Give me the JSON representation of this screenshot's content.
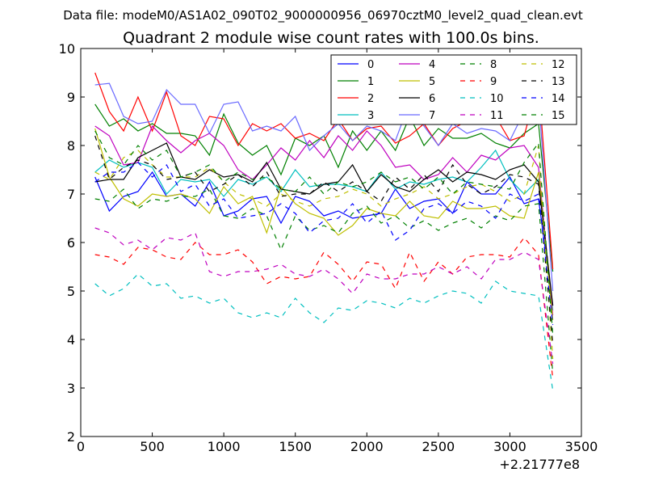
{
  "suptitle": "Data file: modeM0/AS1A02_090T02_9000000956_06970cztM0_level2_quad_clean.evt",
  "chart_data": {
    "type": "line",
    "title": "Quadrant 2 module wise count rates with 100.0s bins.",
    "xlabel": "",
    "ylabel": "",
    "x_offset_label": "+2.21777e8",
    "xlim": [
      0,
      3500
    ],
    "ylim": [
      2,
      10
    ],
    "x_ticks": [
      0,
      500,
      1000,
      1500,
      2000,
      2500,
      3000,
      3500
    ],
    "y_ticks": [
      2,
      3,
      4,
      5,
      6,
      7,
      8,
      9,
      10
    ],
    "grid": false,
    "legend_position": "top-right",
    "x": [
      100,
      200,
      300,
      400,
      500,
      600,
      700,
      800,
      900,
      1000,
      1100,
      1200,
      1300,
      1400,
      1500,
      1600,
      1700,
      1800,
      1900,
      2000,
      2100,
      2200,
      2300,
      2400,
      2500,
      2600,
      2700,
      2800,
      2900,
      3000,
      3100,
      3200,
      3300
    ],
    "series": [
      {
        "name": "0",
        "color": "#0000ff",
        "dash": "solid",
        "values": [
          7.35,
          6.65,
          6.95,
          7.05,
          7.45,
          6.95,
          7.0,
          6.75,
          7.25,
          6.55,
          6.65,
          6.9,
          6.95,
          6.4,
          6.95,
          6.85,
          6.55,
          6.65,
          6.5,
          6.55,
          6.6,
          7.1,
          6.7,
          6.85,
          6.9,
          6.6,
          7.25,
          7.0,
          7.0,
          7.35,
          6.8,
          6.9,
          4.7
        ]
      },
      {
        "name": "1",
        "color": "#008000",
        "dash": "solid",
        "values": [
          8.85,
          8.4,
          8.55,
          8.3,
          8.45,
          8.25,
          8.25,
          8.2,
          7.8,
          8.65,
          8.05,
          7.8,
          8.0,
          7.4,
          8.15,
          8.0,
          8.2,
          7.55,
          8.3,
          7.9,
          8.3,
          7.9,
          8.6,
          8.0,
          8.35,
          8.15,
          8.15,
          8.25,
          8.05,
          7.95,
          8.25,
          8.45,
          5.4
        ]
      },
      {
        "name": "2",
        "color": "#ff0000",
        "dash": "solid",
        "values": [
          9.5,
          8.7,
          8.3,
          9.0,
          8.3,
          9.1,
          8.2,
          8.0,
          8.6,
          8.55,
          8.0,
          8.45,
          8.3,
          8.45,
          8.15,
          8.25,
          8.1,
          8.55,
          8.1,
          8.35,
          8.4,
          8.05,
          8.2,
          8.45,
          8.0,
          8.35,
          8.5,
          8.45,
          8.6,
          8.1,
          8.2,
          9.3,
          5.45
        ]
      },
      {
        "name": "3",
        "color": "#00bfbf",
        "dash": "solid",
        "values": [
          7.45,
          7.7,
          7.55,
          7.65,
          7.55,
          7.0,
          7.3,
          7.25,
          7.3,
          6.95,
          7.3,
          7.2,
          7.35,
          7.05,
          7.5,
          7.15,
          7.2,
          7.2,
          7.15,
          7.05,
          7.45,
          7.1,
          7.25,
          7.2,
          7.3,
          7.35,
          7.25,
          7.55,
          7.9,
          7.3,
          7.0,
          7.3,
          4.6
        ]
      },
      {
        "name": "4",
        "color": "#bf00bf",
        "dash": "solid",
        "values": [
          8.4,
          8.2,
          7.6,
          7.65,
          8.4,
          8.1,
          7.85,
          8.1,
          8.25,
          8.0,
          7.5,
          7.3,
          7.6,
          7.95,
          7.7,
          8.1,
          7.75,
          8.2,
          7.9,
          8.3,
          8.0,
          7.55,
          7.6,
          7.3,
          7.4,
          7.75,
          7.45,
          7.8,
          7.7,
          7.95,
          8.0,
          7.55,
          4.5
        ]
      },
      {
        "name": "5",
        "color": "#bfbf00",
        "dash": "solid",
        "values": [
          8.35,
          7.35,
          6.9,
          6.75,
          7.0,
          6.95,
          7.0,
          6.9,
          6.6,
          7.15,
          6.8,
          6.95,
          6.2,
          7.15,
          6.8,
          6.6,
          6.5,
          6.15,
          6.35,
          6.7,
          6.6,
          6.55,
          6.85,
          6.55,
          6.5,
          6.85,
          6.7,
          6.7,
          6.75,
          6.55,
          6.5,
          7.45,
          4.4
        ]
      },
      {
        "name": "6",
        "color": "#000000",
        "dash": "solid",
        "values": [
          7.25,
          7.3,
          7.3,
          7.75,
          7.9,
          8.05,
          7.35,
          7.3,
          7.5,
          7.35,
          7.4,
          7.25,
          7.65,
          7.1,
          7.05,
          7.0,
          7.2,
          7.25,
          7.6,
          7.05,
          7.4,
          7.15,
          7.05,
          7.3,
          7.5,
          7.25,
          7.45,
          7.4,
          7.3,
          7.5,
          7.6,
          7.25,
          4.7
        ]
      },
      {
        "name": "7",
        "color": "#6a6aff",
        "dash": "solid",
        "values": [
          9.25,
          9.28,
          8.6,
          8.45,
          8.5,
          9.15,
          8.85,
          8.85,
          8.25,
          8.85,
          8.9,
          8.3,
          8.4,
          8.3,
          8.6,
          7.9,
          8.2,
          8.45,
          8.1,
          8.4,
          8.3,
          8.1,
          8.9,
          8.4,
          8.0,
          8.45,
          8.25,
          8.35,
          8.3,
          8.1,
          8.7,
          9.0,
          5.0
        ]
      },
      {
        "name": "8",
        "color": "#008000",
        "dash": "dashed",
        "values": [
          6.9,
          6.85,
          7.1,
          6.7,
          6.9,
          6.85,
          6.95,
          6.95,
          7.1,
          6.55,
          6.5,
          6.7,
          6.55,
          5.85,
          6.55,
          6.25,
          6.35,
          6.2,
          6.6,
          6.75,
          6.4,
          6.55,
          6.3,
          6.45,
          6.25,
          6.4,
          6.5,
          6.3,
          6.55,
          6.45,
          6.75,
          6.8,
          3.3
        ]
      },
      {
        "name": "9",
        "color": "#ff0000",
        "dash": "dashed",
        "values": [
          5.75,
          5.7,
          5.55,
          5.9,
          5.85,
          5.7,
          5.65,
          6.0,
          5.75,
          5.75,
          5.85,
          5.6,
          5.15,
          5.3,
          5.25,
          5.3,
          5.8,
          5.55,
          5.2,
          5.6,
          5.55,
          5.05,
          5.8,
          5.2,
          5.6,
          5.35,
          5.7,
          5.75,
          5.75,
          5.7,
          6.1,
          5.75,
          3.2
        ]
      },
      {
        "name": "10",
        "color": "#00bfbf",
        "dash": "dashed",
        "values": [
          5.15,
          4.9,
          5.05,
          5.35,
          5.1,
          5.15,
          4.85,
          4.9,
          4.75,
          4.85,
          4.55,
          4.45,
          4.55,
          4.45,
          4.85,
          4.55,
          4.35,
          4.65,
          4.6,
          4.8,
          4.75,
          4.65,
          4.85,
          4.75,
          4.9,
          5.0,
          4.95,
          4.75,
          5.2,
          5.0,
          4.95,
          4.9,
          2.95
        ]
      },
      {
        "name": "11",
        "color": "#bf00bf",
        "dash": "dashed",
        "values": [
          6.3,
          6.2,
          5.95,
          6.05,
          5.85,
          6.1,
          6.05,
          6.2,
          5.4,
          5.3,
          5.4,
          5.4,
          5.45,
          5.55,
          5.35,
          5.3,
          5.45,
          5.25,
          4.95,
          5.35,
          5.25,
          5.25,
          5.35,
          5.35,
          5.5,
          5.35,
          5.5,
          5.25,
          5.65,
          5.65,
          5.8,
          5.65,
          3.5
        ]
      },
      {
        "name": "12",
        "color": "#bfbf00",
        "dash": "dashed",
        "values": [
          7.45,
          7.3,
          7.75,
          7.9,
          7.6,
          7.35,
          7.35,
          7.35,
          7.55,
          7.25,
          7.0,
          6.9,
          6.75,
          7.0,
          6.85,
          6.75,
          6.9,
          6.95,
          7.1,
          7.0,
          6.75,
          6.9,
          7.0,
          7.15,
          6.9,
          7.0,
          7.15,
          7.2,
          7.05,
          6.85,
          7.0,
          8.0,
          3.6
        ]
      },
      {
        "name": "13",
        "color": "#000000",
        "dash": "dashed",
        "values": [
          8.2,
          7.3,
          7.55,
          7.7,
          7.6,
          7.3,
          7.35,
          7.45,
          7.05,
          7.2,
          7.4,
          7.15,
          7.45,
          6.95,
          7.0,
          7.0,
          7.25,
          7.05,
          7.25,
          7.05,
          6.85,
          7.35,
          7.1,
          7.4,
          7.05,
          7.6,
          7.2,
          7.0,
          7.15,
          7.4,
          7.35,
          7.2,
          3.9
        ]
      },
      {
        "name": "14",
        "color": "#0000ff",
        "dash": "dashed",
        "values": [
          7.25,
          7.45,
          7.45,
          7.65,
          7.35,
          7.6,
          7.05,
          7.2,
          6.75,
          6.9,
          6.5,
          6.55,
          6.6,
          6.8,
          6.6,
          6.2,
          6.45,
          6.5,
          6.8,
          6.4,
          6.65,
          6.05,
          6.25,
          6.7,
          6.8,
          6.6,
          6.85,
          6.75,
          6.5,
          7.0,
          6.85,
          7.0,
          4.3
        ]
      },
      {
        "name": "15",
        "color": "#008000",
        "dash": "dashed",
        "values": [
          8.3,
          7.75,
          7.6,
          8.0,
          7.7,
          7.9,
          7.35,
          7.45,
          7.6,
          7.25,
          7.45,
          7.3,
          7.35,
          7.1,
          7.05,
          7.35,
          7.0,
          7.25,
          7.15,
          7.25,
          7.45,
          7.25,
          7.35,
          7.1,
          7.35,
          7.0,
          7.25,
          7.2,
          7.15,
          7.1,
          7.65,
          8.05,
          4.1
        ]
      }
    ]
  }
}
